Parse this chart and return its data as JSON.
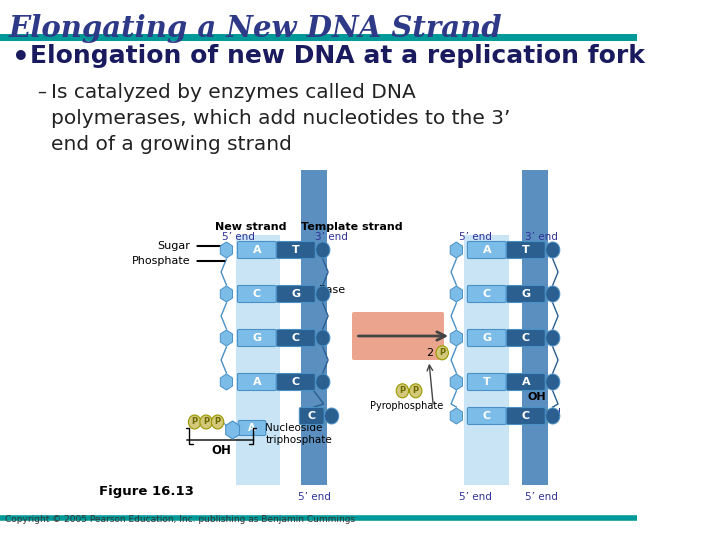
{
  "title": "Elongating a New DNA Strand",
  "title_color": "#2E3A87",
  "teal_line_color": "#009999",
  "bullet_text": "Elongation of new DNA at a replication fork",
  "bullet_color": "#1a1a5e",
  "bullet_fontsize": 18,
  "sub_bullet_text": "Is catalyzed by enzymes called DNA\npolymerases, which add nucleotides to the 3’\nend of a growing strand",
  "sub_bullet_color": "#222222",
  "sub_bullet_fontsize": 14.5,
  "copyright_text": "Copyright © 2005 Pearson Education, Inc. publishing as Benjamin Cummings",
  "background_color": "#FFFFFF",
  "dna_light_blue": "#7bbde8",
  "dna_mid_blue": "#4a90c4",
  "dna_dark_blue": "#2a5f8f",
  "dna_pale_bg": "#c5dff0",
  "base_rect_left": "#a8d4f0",
  "base_arrow_color": "#2a5f8f",
  "backbone_left_color": "#7ab8e0",
  "backbone_right_dark": "#3a6ea8",
  "p_circle_color": "#d4c87a",
  "p_text_color": "#6b6b00",
  "orange_rect_color": "#e8967a",
  "arrow_color": "#555555",
  "new_strand_label": "New strand",
  "template_strand_label": "Template strand",
  "sugar_label": "Sugar",
  "phosphate_label": "Phosphate",
  "base_label": "Base",
  "five_prime": "5’ end",
  "three_prime": "3’ end",
  "oh_label": "OH",
  "nucleoside_label": "Nucleoside\ntriphosphate",
  "pyrophosphate_label": "Pyrophosphate",
  "three_prime_end": "3’ end",
  "two_p_label": "2",
  "figure_label": "Figure 16.13"
}
